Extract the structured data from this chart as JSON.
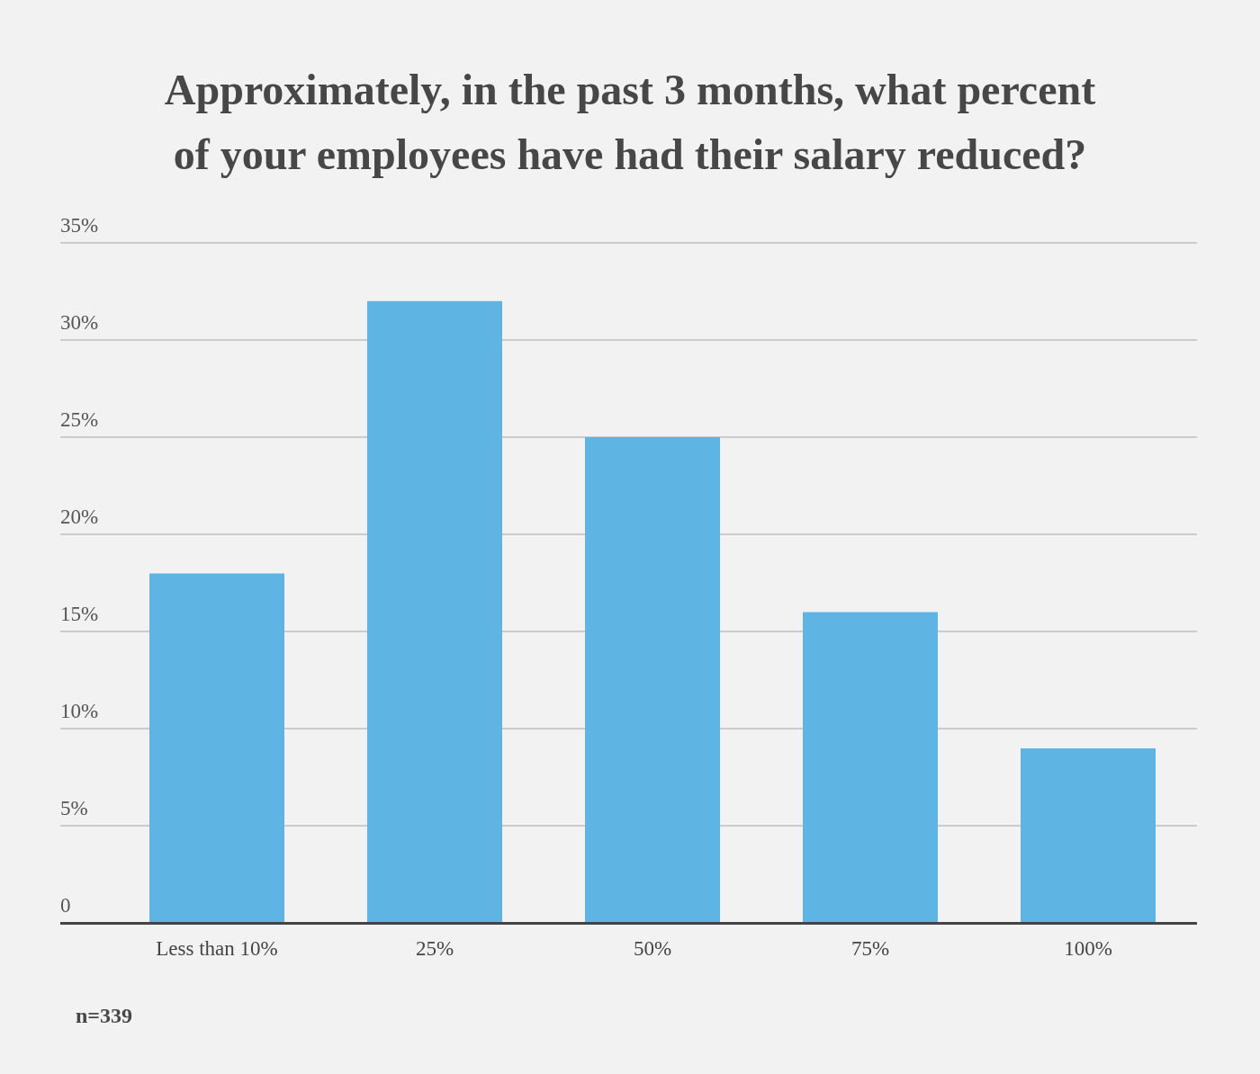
{
  "chart_data": {
    "type": "bar",
    "title": "Approximately, in the past 3 months, what percent of your employees have had their salary reduced?",
    "categories": [
      "Less than 10%",
      "25%",
      "50%",
      "75%",
      "100%"
    ],
    "values": [
      18,
      32,
      25,
      16,
      9
    ],
    "color": "#5eb5e4",
    "ylim": [
      0,
      35
    ],
    "yticks": [
      0,
      {
        "value": 5,
        "label": "5%"
      },
      {
        "value": 10,
        "label": "10%"
      },
      {
        "value": 15,
        "label": "15%"
      },
      {
        "value": 20,
        "label": "20%"
      },
      {
        "value": 25,
        "label": "25%"
      },
      {
        "value": 30,
        "label": "30%"
      },
      {
        "value": 35,
        "label": "35%"
      }
    ],
    "grid": "y",
    "legend": false,
    "annotations": [
      "n=339"
    ]
  }
}
